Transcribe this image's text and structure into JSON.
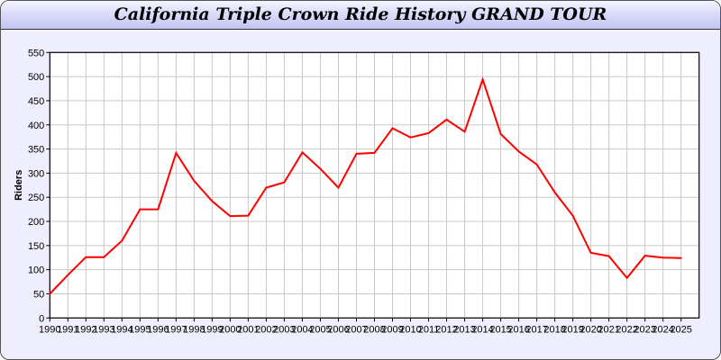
{
  "title": "California Triple Crown Ride History GRAND TOUR",
  "chart_data": {
    "type": "line",
    "title": "California Triple Crown Ride History GRAND TOUR",
    "xlabel": "",
    "ylabel": "Riders",
    "ylim": [
      0,
      550
    ],
    "yticks": [
      0,
      50,
      100,
      150,
      200,
      250,
      300,
      350,
      400,
      450,
      500,
      550
    ],
    "grid": true,
    "line_color": "#ff0000",
    "x": [
      1990,
      1991,
      1992,
      1993,
      1994,
      1995,
      1996,
      1997,
      1998,
      1999,
      2000,
      2001,
      2002,
      2003,
      2004,
      2005,
      2006,
      2007,
      2008,
      2009,
      2010,
      2011,
      2012,
      2013,
      2014,
      2015,
      2016,
      2017,
      2018,
      2019,
      2020,
      2021,
      2022,
      2023,
      2024,
      2025
    ],
    "values": [
      50,
      89,
      126,
      126,
      160,
      225,
      225,
      342,
      284,
      242,
      211,
      212,
      270,
      281,
      343,
      309,
      270,
      340,
      342,
      393,
      374,
      383,
      411,
      386,
      494,
      381,
      345,
      318,
      260,
      212,
      135,
      128,
      83,
      129,
      125,
      124
    ]
  }
}
